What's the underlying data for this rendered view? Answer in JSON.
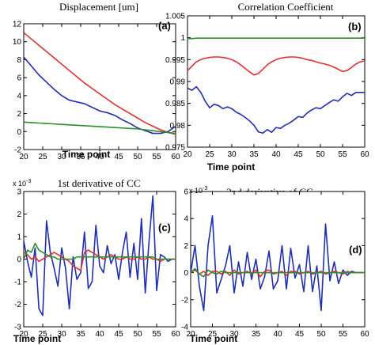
{
  "chart_data": [
    {
      "type": "line",
      "title": "Displacement [um]",
      "panel_label": "(a)",
      "xlabel": "Time point",
      "xlim": [
        20,
        60
      ],
      "ylim": [
        -2,
        12
      ],
      "xticks": [
        20,
        25,
        30,
        35,
        40,
        45,
        50,
        55,
        60
      ],
      "yticks": [
        -2,
        0,
        2,
        4,
        6,
        8,
        10,
        12
      ],
      "y_exponent": "",
      "x": [
        20,
        22,
        24,
        26,
        28,
        30,
        32,
        34,
        36,
        38,
        40,
        42,
        44,
        46,
        48,
        50,
        52,
        54,
        56,
        58,
        60
      ],
      "series": [
        {
          "color": "#e03030",
          "values": [
            11.0,
            10.3,
            9.6,
            8.9,
            8.2,
            7.5,
            6.8,
            6.1,
            5.4,
            4.8,
            4.2,
            3.6,
            3.0,
            2.5,
            2.0,
            1.5,
            1.0,
            0.6,
            0.2,
            -0.1,
            -0.3
          ]
        },
        {
          "color": "#1f2fb0",
          "values": [
            8.3,
            7.3,
            6.3,
            5.5,
            4.7,
            4.0,
            3.5,
            3.3,
            3.1,
            2.7,
            2.3,
            2.1,
            1.8,
            1.3,
            0.9,
            0.4,
            0.1,
            -0.2,
            -0.2,
            0.0,
            0.6
          ]
        },
        {
          "color": "#2a8f2a",
          "values": [
            1.05,
            1.0,
            0.95,
            0.9,
            0.85,
            0.8,
            0.75,
            0.7,
            0.65,
            0.6,
            0.55,
            0.5,
            0.45,
            0.4,
            0.35,
            0.3,
            0.2,
            0.1,
            0.0,
            -0.1,
            -0.2
          ]
        }
      ]
    },
    {
      "type": "line",
      "title": "Correlation Coefficient",
      "panel_label": "(b)",
      "xlabel": "Time point",
      "xlim": [
        20,
        60
      ],
      "ylim": [
        0.975,
        1.005
      ],
      "xticks": [
        20,
        25,
        30,
        35,
        40,
        45,
        50,
        55,
        60
      ],
      "yticks": [
        0.975,
        0.98,
        0.985,
        0.99,
        0.995,
        1,
        1.005
      ],
      "ytick_labels": [
        "0.975",
        "0.98",
        "0.985",
        "0.99",
        "0.995",
        "1",
        "1.005"
      ],
      "y_exponent": "",
      "x": [
        20,
        21,
        22,
        23,
        24,
        25,
        26,
        27,
        28,
        29,
        30,
        31,
        32,
        33,
        34,
        35,
        36,
        37,
        38,
        39,
        40,
        41,
        42,
        43,
        44,
        45,
        46,
        47,
        48,
        49,
        50,
        51,
        52,
        53,
        54,
        55,
        56,
        57,
        58,
        59,
        60
      ],
      "series": [
        {
          "color": "#2a8f2a",
          "values": [
            0.9998,
            0.9998,
            0.9999,
            0.9999,
            0.9999,
            0.9999,
            0.9999,
            0.9999,
            0.9999,
            0.9999,
            0.9999,
            0.9999,
            0.9999,
            0.9999,
            0.9999,
            0.9999,
            0.9999,
            0.9999,
            0.9999,
            0.9999,
            0.9999,
            0.9999,
            0.9999,
            0.9999,
            0.9999,
            0.9999,
            0.9999,
            0.9999,
            0.9999,
            0.9999,
            0.9999,
            0.9999,
            0.9999,
            0.9999,
            0.9999,
            0.9999,
            0.9999,
            0.9999,
            0.9999,
            0.9999,
            0.9999
          ]
        },
        {
          "color": "#e03030",
          "values": [
            0.9925,
            0.9935,
            0.9945,
            0.995,
            0.9953,
            0.9955,
            0.9956,
            0.9956,
            0.9955,
            0.9953,
            0.995,
            0.9945,
            0.9938,
            0.993,
            0.9922,
            0.9915,
            0.9918,
            0.9928,
            0.9938,
            0.9945,
            0.995,
            0.9953,
            0.9955,
            0.9956,
            0.9956,
            0.9955,
            0.9953,
            0.995,
            0.9948,
            0.9945,
            0.9942,
            0.994,
            0.9937,
            0.9933,
            0.9928,
            0.9923,
            0.9925,
            0.9932,
            0.994,
            0.9945,
            0.9947
          ]
        },
        {
          "color": "#1f2fb0",
          "values": [
            0.9885,
            0.988,
            0.9888,
            0.9875,
            0.9855,
            0.984,
            0.9848,
            0.9845,
            0.9838,
            0.9842,
            0.9838,
            0.983,
            0.9825,
            0.9818,
            0.981,
            0.98,
            0.9785,
            0.9782,
            0.979,
            0.9784,
            0.9795,
            0.9793,
            0.98,
            0.9805,
            0.9812,
            0.982,
            0.9818,
            0.9828,
            0.9835,
            0.984,
            0.9838,
            0.9845,
            0.9852,
            0.9858,
            0.9855,
            0.9865,
            0.9873,
            0.9868,
            0.9875,
            0.9875,
            0.9875
          ]
        }
      ]
    },
    {
      "type": "line",
      "title": "1st derivative of CC",
      "panel_label": "(c)",
      "xlabel": "Time point",
      "xlim": [
        20,
        60
      ],
      "ylim": [
        -3,
        3
      ],
      "xticks": [
        20,
        25,
        30,
        35,
        40,
        45,
        50,
        55,
        60
      ],
      "yticks": [
        -3,
        -2,
        -1,
        0,
        1,
        2,
        3
      ],
      "y_exponent": "x 10",
      "y_exponent_power": "-3",
      "x": [
        20,
        21,
        22,
        23,
        24,
        25,
        26,
        27,
        28,
        29,
        30,
        31,
        32,
        33,
        34,
        35,
        36,
        37,
        38,
        39,
        40,
        41,
        42,
        43,
        44,
        45,
        46,
        47,
        48,
        49,
        50,
        51,
        52,
        53,
        54,
        55,
        56,
        57,
        58,
        59,
        60
      ],
      "series": [
        {
          "color": "#1f2fb0",
          "values": [
            0.8,
            -0.1,
            -0.8,
            0.5,
            -2.2,
            -2.5,
            1.7,
            0.3,
            -0.4,
            -1.2,
            0.5,
            -0.4,
            -2.2,
            0.1,
            -0.9,
            -0.6,
            1.2,
            -1.3,
            -1.0,
            1.5,
            -0.3,
            -0.6,
            0.6,
            -0.2,
            0.2,
            -0.9,
            0.3,
            1.2,
            -0.8,
            0.7,
            -0.9,
            1.8,
            -1.5,
            0.8,
            2.8,
            -1.4,
            0.2,
            0.1,
            -0.1,
            0.0,
            0.0
          ]
        },
        {
          "color": "#e03030",
          "values": [
            0.3,
            0.2,
            0.0,
            0.1,
            -0.1,
            0.0,
            0.1,
            0.2,
            0.3,
            0.2,
            0.1,
            0.0,
            -0.1,
            -0.3,
            -0.4,
            -0.5,
            0.3,
            0.4,
            0.3,
            0.2,
            0.1,
            0.0,
            0.1,
            0.2,
            0.1,
            0.0,
            0.0,
            0.1,
            0.0,
            0.0,
            0.1,
            0.0,
            0.0,
            0.1,
            0.0,
            0.0,
            -0.1,
            0.0,
            0.0,
            0.0,
            0.0
          ]
        },
        {
          "color": "#2a8f2a",
          "values": [
            0.0,
            0.4,
            0.3,
            0.7,
            0.4,
            0.3,
            0.2,
            0.1,
            0.1,
            0.0,
            0.0,
            0.0,
            0.0,
            0.0,
            0.1,
            0.1,
            0.1,
            0.1,
            0.1,
            0.1,
            0.1,
            0.1,
            0.1,
            0.1,
            0.1,
            0.1,
            0.1,
            0.1,
            0.1,
            0.1,
            0.1,
            0.1,
            0.1,
            0.1,
            0.1,
            0.0,
            0.0,
            0.0,
            0.0,
            0.0,
            0.0
          ]
        }
      ]
    },
    {
      "type": "line",
      "title": "2nd derivative of CC",
      "panel_label": "(d)",
      "xlabel": "Time point",
      "xlim": [
        20,
        60
      ],
      "ylim": [
        -4,
        6
      ],
      "xticks": [
        20,
        25,
        30,
        35,
        40,
        45,
        50,
        55,
        60
      ],
      "yticks": [
        -4,
        -2,
        0,
        2,
        4,
        6
      ],
      "y_exponent": "x 10",
      "y_exponent_power": "-3",
      "x": [
        20,
        21,
        22,
        23,
        24,
        25,
        26,
        27,
        28,
        29,
        30,
        31,
        32,
        33,
        34,
        35,
        36,
        37,
        38,
        39,
        40,
        41,
        42,
        43,
        44,
        45,
        46,
        47,
        48,
        49,
        50,
        51,
        52,
        53,
        54,
        55,
        56,
        57,
        58,
        59,
        60
      ],
      "series": [
        {
          "color": "#1f2fb0",
          "values": [
            0.0,
            2.0,
            -1.0,
            -2.8,
            2.0,
            4.2,
            -1.5,
            -0.5,
            0.5,
            2.0,
            -1.5,
            0.8,
            -1.0,
            1.5,
            -0.5,
            1.0,
            -1.2,
            -0.3,
            1.6,
            -1.2,
            -0.6,
            2.0,
            -1.2,
            1.8,
            -0.4,
            0.6,
            -1.4,
            2.0,
            -1.4,
            0.5,
            -2.8,
            3.6,
            -0.6,
            0.8,
            -0.8,
            0.2,
            -0.2,
            0.1,
            0.0,
            0.0,
            0.0
          ]
        },
        {
          "color": "#e03030",
          "values": [
            0.0,
            0.2,
            -0.1,
            0.1,
            -0.2,
            0.1,
            0.1,
            -0.1,
            0.1,
            -0.2,
            0.2,
            -0.1,
            0.0,
            0.1,
            -0.1,
            0.2,
            -0.3,
            0.1,
            0.2,
            -0.1,
            0.0,
            0.1,
            -0.2,
            0.1,
            0.1,
            -0.1,
            0.0,
            0.1,
            -0.1,
            0.0,
            0.1,
            -0.1,
            0.0,
            0.1,
            0.0,
            -0.1,
            0.1,
            0.0,
            0.0,
            0.0,
            0.0
          ]
        },
        {
          "color": "#2a8f2a",
          "values": [
            0.0,
            0.3,
            -0.1,
            -0.3,
            0.2,
            0.0,
            -0.1,
            0.1,
            0.0,
            0.0,
            0.0,
            0.0,
            0.0,
            0.0,
            0.0,
            0.0,
            0.0,
            0.0,
            0.0,
            0.0,
            0.0,
            0.0,
            0.0,
            0.0,
            0.0,
            0.0,
            0.0,
            0.0,
            0.0,
            0.0,
            0.0,
            0.0,
            0.0,
            0.0,
            0.0,
            0.0,
            0.0,
            0.0,
            0.0,
            0.0,
            0.0
          ]
        }
      ]
    }
  ]
}
